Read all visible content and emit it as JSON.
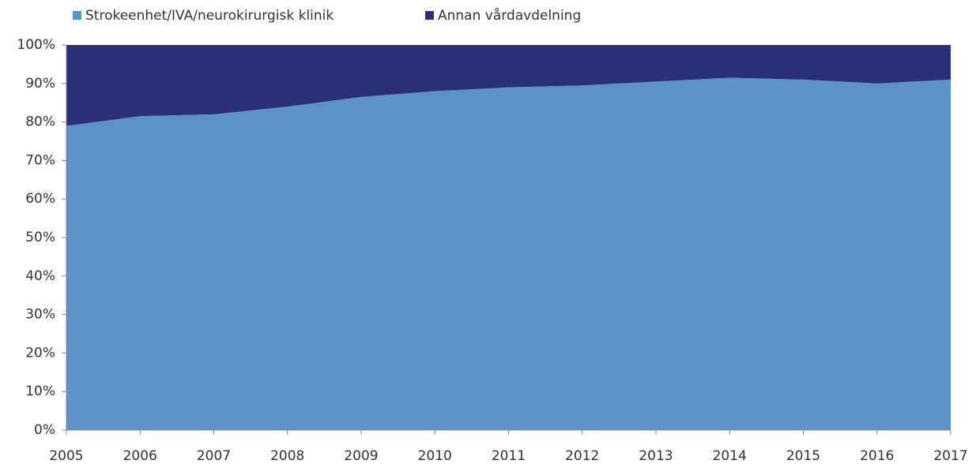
{
  "chart_data": {
    "type": "stacked-area",
    "categories": [
      "2005",
      "2006",
      "2007",
      "2008",
      "2009",
      "2010",
      "2011",
      "2012",
      "2013",
      "2014",
      "2015",
      "2016",
      "2017"
    ],
    "series": [
      {
        "name": "Strokeenhet/IVA/neurokirurgisk klinik",
        "color": "#5b93c8",
        "values": [
          79,
          81.5,
          82,
          84,
          86.5,
          88,
          89,
          89.5,
          90.5,
          91.5,
          91,
          90,
          91
        ]
      },
      {
        "name": "Annan vårdavdelning",
        "color": "#2b2e78",
        "values": [
          21,
          18.5,
          18,
          16,
          13.5,
          12,
          11,
          10.5,
          9.5,
          8.5,
          9,
          10,
          9
        ]
      }
    ],
    "ylim": [
      0,
      100
    ],
    "yticks": [
      {
        "value": 0,
        "label": "0%"
      },
      {
        "value": 10,
        "label": "10%"
      },
      {
        "value": 20,
        "label": "20%"
      },
      {
        "value": 30,
        "label": "30%"
      },
      {
        "value": 40,
        "label": "40%"
      },
      {
        "value": 50,
        "label": "50%"
      },
      {
        "value": 60,
        "label": "60%"
      },
      {
        "value": 70,
        "label": "70%"
      },
      {
        "value": 80,
        "label": "80%"
      },
      {
        "value": 90,
        "label": "90%"
      },
      {
        "value": 100,
        "label": "100%"
      }
    ]
  }
}
